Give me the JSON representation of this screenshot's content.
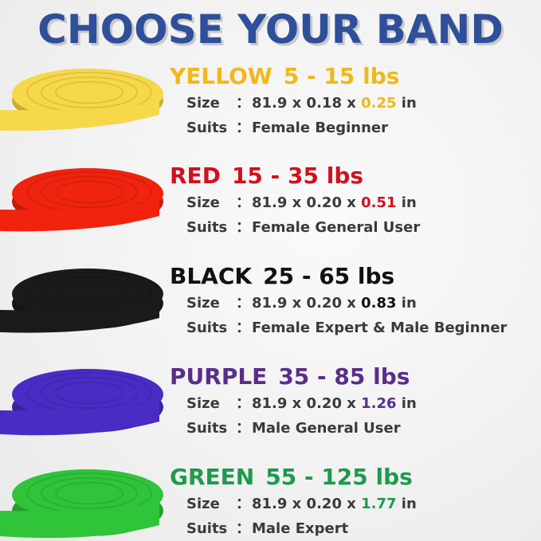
{
  "title": "CHOOSE YOUR BAND",
  "size_label": "Size",
  "suits_label": "Suits",
  "colon": "：",
  "bands": [
    {
      "color_name": "YELLOW",
      "weight": "5 - 15 lbs",
      "color": "#f0b81a",
      "band_color": "#f7d84a",
      "size_prefix": "81.9 x 0.18 x ",
      "width": "0.25",
      "unit": " in",
      "suits": "Female Beginner"
    },
    {
      "color_name": "RED",
      "weight": "15 - 35 lbs",
      "color": "#d0111f",
      "band_color": "#f0230f",
      "size_prefix": "81.9 x 0.20 x ",
      "width": "0.51",
      "unit": " in",
      "suits": "Female General User"
    },
    {
      "color_name": "BLACK",
      "weight": "25 - 65 lbs",
      "color": "#111111",
      "band_color": "#1a1a1a",
      "size_prefix": "81.9 x 0.20 x ",
      "width": "0.83",
      "unit": " in",
      "suits": "Female Expert & Male Beginner"
    },
    {
      "color_name": "PURPLE",
      "weight": "35 - 85 lbs",
      "color": "#5b2d8a",
      "band_color": "#4a2bc4",
      "size_prefix": "81.9 x 0.20 x ",
      "width": "1.26",
      "unit": " in",
      "suits": "Male General User"
    },
    {
      "color_name": "GREEN",
      "weight": "55 - 125 lbs",
      "color": "#1e9a4c",
      "band_color": "#2fc43a",
      "size_prefix": "81.9 x 0.20 x ",
      "width": "1.77",
      "unit": " in",
      "suits": "Male Expert"
    }
  ]
}
